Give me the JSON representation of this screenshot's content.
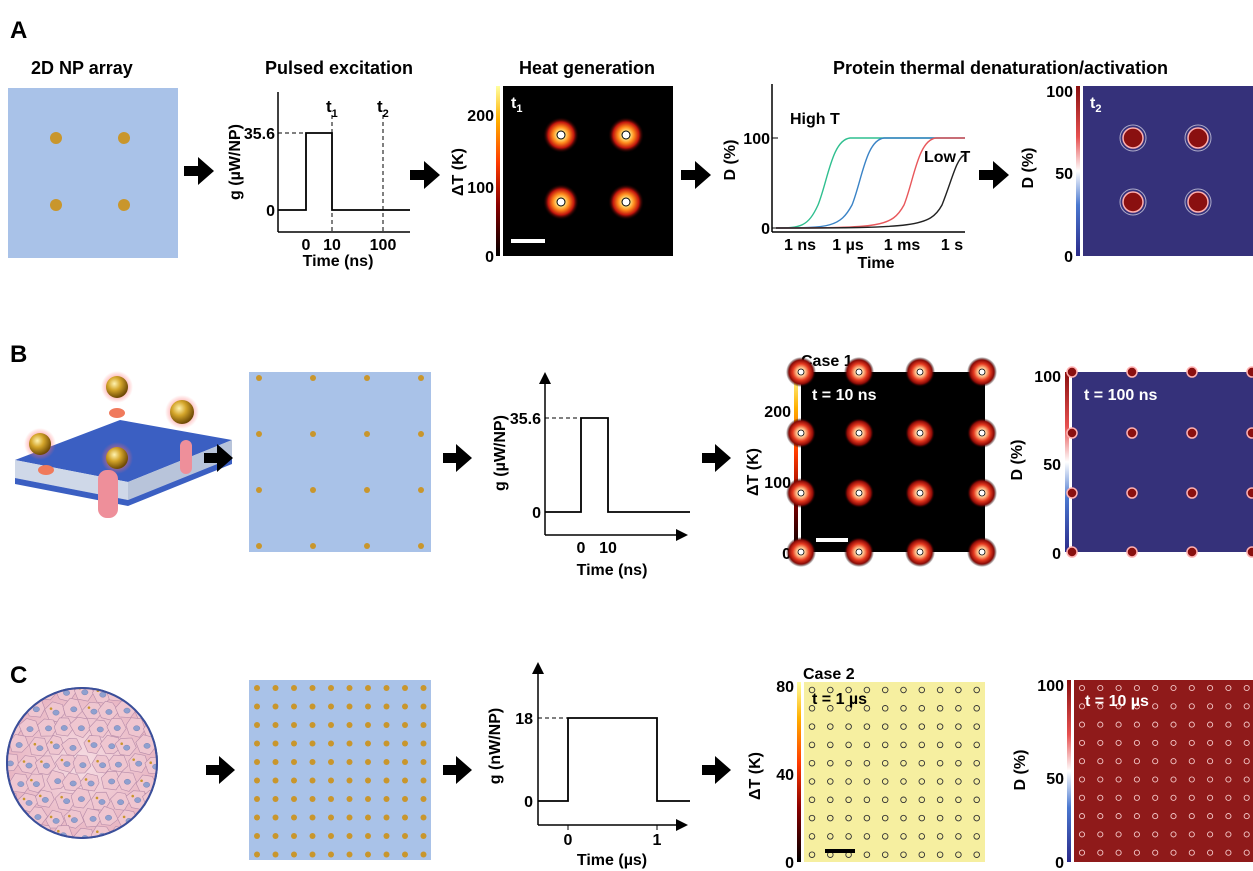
{
  "colors": {
    "panel_bg": "#a9c2e8",
    "np": "#c9962c",
    "heat_bg": "#000000",
    "denat_bg_B": "#35317a",
    "heat_bg_C": "#f6efa0",
    "denat_bg_C": "#8f1a1a",
    "curve_1": "#2fbf8f",
    "curve_2": "#3a83c6",
    "curve_3": "#e8575b",
    "curve_4": "#222222"
  },
  "panel_A": {
    "letter": "A",
    "headers": {
      "array": "2D NP array",
      "pulse": "Pulsed excitation",
      "heat": "Heat generation",
      "protein": "Protein thermal denaturation/activation"
    },
    "pulse_chart": {
      "ylabel": "g (µW/NP)",
      "y_level": "35.6",
      "y_zero": "0",
      "x_ticks": [
        "0",
        "10",
        "100"
      ],
      "xlabel": "Time (ns)",
      "t1": "t1",
      "t2": "t2"
    },
    "heat_map": {
      "ylabel": "ΔT (K)",
      "ticks": [
        "200",
        "100",
        "0"
      ],
      "time_label": "t1"
    },
    "curve_chart": {
      "ylabel": "D (%)",
      "y_ticks": [
        "100",
        "0"
      ],
      "x_ticks": [
        "1 ns",
        "1 µs",
        "1 ms",
        "1 s"
      ],
      "xlabel": "Time",
      "high_label": "High T",
      "low_label": "Low T"
    },
    "denat_map": {
      "ylabel": "D (%)",
      "ticks": [
        "100",
        "50",
        "0"
      ],
      "time_label": "t2"
    }
  },
  "panel_B": {
    "letter": "B",
    "pulse_chart": {
      "ylabel": "g (µW/NP)",
      "y_level": "35.6",
      "y_zero": "0",
      "x_ticks": [
        "0",
        "10"
      ],
      "xlabel": "Time (ns)"
    },
    "heat_map": {
      "case": "Case 1",
      "time": "t = 10 ns",
      "ylabel": "ΔT (K)",
      "ticks": [
        "200",
        "100",
        "0"
      ]
    },
    "denat_map": {
      "time": "t = 100 ns",
      "ylabel": "D (%)",
      "ticks": [
        "100",
        "50",
        "0"
      ]
    }
  },
  "panel_C": {
    "letter": "C",
    "pulse_chart": {
      "ylabel": "g (nW/NP)",
      "y_level": "18",
      "y_zero": "0",
      "x_ticks": [
        "0",
        "1"
      ],
      "xlabel": "Time (µs)"
    },
    "heat_map": {
      "case": "Case 2",
      "time": "t = 1 µs",
      "ylabel": "ΔT (K)",
      "ticks": [
        "80",
        "40",
        "0"
      ]
    },
    "denat_map": {
      "time": "t = 10 µs",
      "ylabel": "D (%)",
      "ticks": [
        "100",
        "50",
        "0"
      ]
    }
  }
}
